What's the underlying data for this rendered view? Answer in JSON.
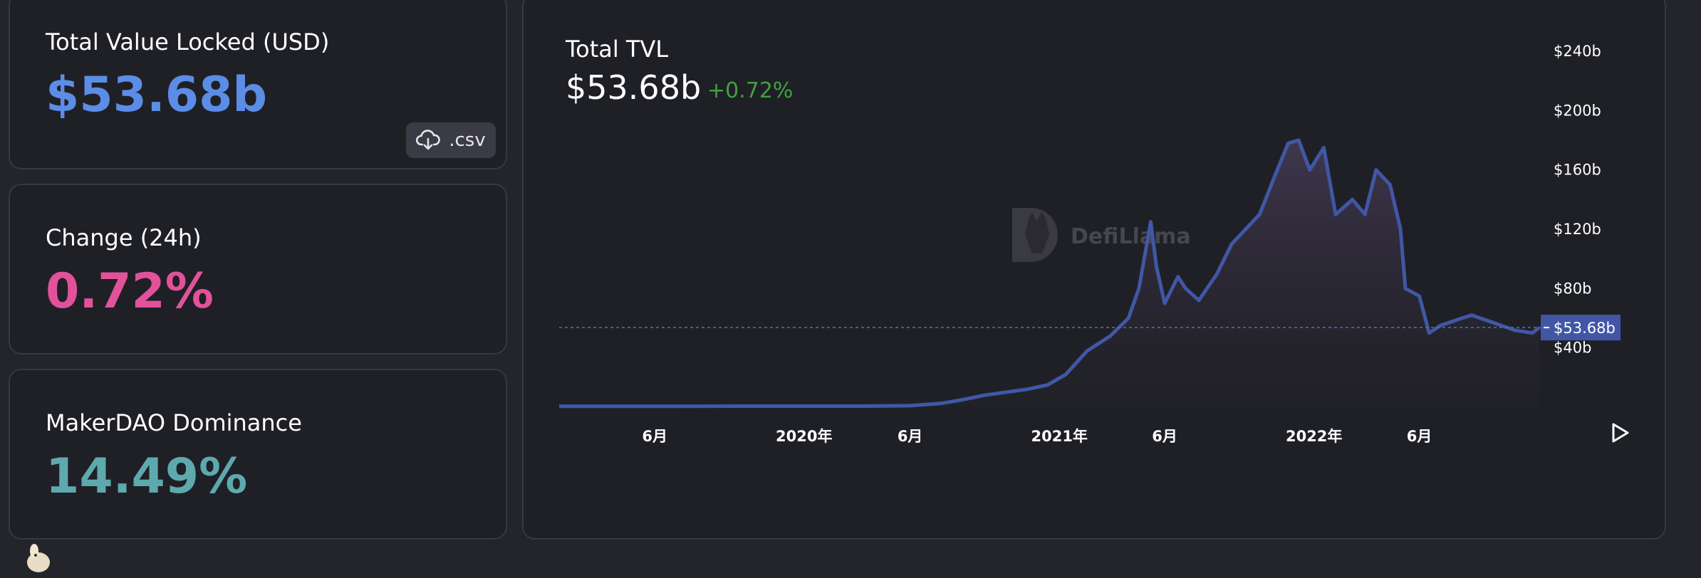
{
  "stats": {
    "tvl": {
      "label": "Total Value Locked (USD)",
      "value": "$53.68b",
      "color": "#5c8de6"
    },
    "change": {
      "label": "Change (24h)",
      "value": "0.72%",
      "color": "#e2529a"
    },
    "dominance": {
      "label": "MakerDAO Dominance",
      "value": "14.49%",
      "color": "#5ea9ad"
    },
    "csv_label": ".csv",
    "csv_icon": "cloud-download-icon"
  },
  "chart_header": {
    "title": "Total TVL",
    "value": "$53.68b",
    "change": "+0.72%",
    "change_color": "#3ea23e"
  },
  "watermark": "DefiLlama",
  "chart_data": {
    "type": "area",
    "series": [
      {
        "color": "#4157a6",
        "x": [
          "2019-01-15",
          "2019-04-01",
          "2019-07-01",
          "2019-10-01",
          "2020-01-01",
          "2020-04-01",
          "2020-06-01",
          "2020-07-15",
          "2020-08-15",
          "2020-09-15",
          "2020-10-15",
          "2020-11-15",
          "2020-12-15",
          "2021-01-10",
          "2021-02-10",
          "2021-03-15",
          "2021-04-10",
          "2021-04-25",
          "2021-05-12",
          "2021-05-20",
          "2021-06-01",
          "2021-06-20",
          "2021-07-01",
          "2021-07-20",
          "2021-08-15",
          "2021-09-05",
          "2021-09-25",
          "2021-10-15",
          "2021-11-05",
          "2021-11-25",
          "2021-12-10",
          "2021-12-26",
          "2022-01-15",
          "2022-02-01",
          "2022-02-25",
          "2022-03-15",
          "2022-03-31",
          "2022-04-20",
          "2022-05-05",
          "2022-05-12",
          "2022-06-01",
          "2022-06-15",
          "2022-07-01",
          "2022-08-01",
          "2022-08-15",
          "2022-09-15",
          "2022-10-15",
          "2022-11-10",
          "2022-11-20"
        ],
        "values": [
          0.6,
          0.6,
          0.6,
          0.7,
          0.7,
          0.7,
          1.0,
          2.5,
          5.0,
          8.0,
          10.0,
          12.0,
          15.0,
          22.0,
          38.0,
          48.0,
          60.0,
          80.0,
          125.0,
          95.0,
          70.0,
          88.0,
          80.0,
          72.0,
          90.0,
          110.0,
          120.0,
          130.0,
          155.0,
          178.0,
          180.0,
          160.0,
          175.0,
          130.0,
          140.0,
          130.0,
          160.0,
          150.0,
          120.0,
          80.0,
          75.0,
          50.0,
          55.0,
          60.0,
          62.0,
          57.0,
          52.0,
          50.0,
          53.68
        ]
      }
    ],
    "ylim": [
      0,
      240
    ],
    "xlim": [
      "2019-01-15",
      "2022-11-22"
    ],
    "yticks": [
      40,
      80,
      120,
      160,
      200,
      240
    ],
    "ytick_labels": [
      "$40b",
      "$80b",
      "$120b",
      "$160b",
      "$200b",
      "$240b"
    ],
    "xticks": [
      "2019-06-01",
      "2020-01-01",
      "2020-06-01",
      "2021-01-01",
      "2021-06-01",
      "2022-01-01",
      "2022-06-01"
    ],
    "xtick_labels": [
      "6月",
      "2020年",
      "6月",
      "2021年",
      "6月",
      "2022年",
      "6月"
    ],
    "current_value": 53.68,
    "current_label": "$53.68b",
    "grid": false
  }
}
